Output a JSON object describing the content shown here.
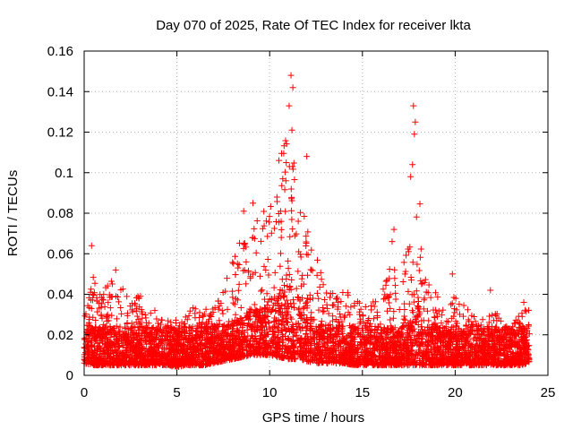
{
  "chart_data": {
    "type": "scatter",
    "title": "Day 070 of 2025, Rate Of TEC Index for receiver lkta",
    "xlabel": "GPS time / hours",
    "ylabel": "ROTI / TECUs",
    "xlim": [
      0,
      25
    ],
    "ylim": [
      0,
      0.16
    ],
    "x_ticks": [
      0,
      5,
      10,
      15,
      20,
      25
    ],
    "y_ticks": [
      0,
      0.02,
      0.04,
      0.06,
      0.08,
      0.1,
      0.12,
      0.14,
      0.16
    ],
    "x_tick_labels": [
      "0",
      "5",
      "10",
      "15",
      "20",
      "25"
    ],
    "y_tick_labels": [
      "0",
      "0.02",
      "0.04",
      "0.06",
      "0.08",
      "0.1",
      "0.12",
      "0.14",
      "0.16"
    ],
    "grid": true,
    "marker": "+",
    "color": "#ff0000",
    "series": [
      {
        "name": "ROTI",
        "envelope_hours": [
          0,
          0.5,
          1,
          1.5,
          2,
          2.5,
          3,
          3.5,
          4,
          4.5,
          5,
          5.5,
          6,
          6.5,
          7,
          7.5,
          8,
          8.5,
          9,
          9.5,
          10,
          10.5,
          11,
          11.5,
          12,
          12.5,
          13,
          13.5,
          14,
          14.5,
          15,
          15.5,
          16,
          16.5,
          17,
          17.5,
          18,
          18.5,
          19,
          19.5,
          20,
          20.5,
          21,
          21.5,
          22,
          22.5,
          23,
          23.5,
          24
        ],
        "envelope_min": [
          0.006,
          0.005,
          0.005,
          0.005,
          0.005,
          0.005,
          0.005,
          0.005,
          0.005,
          0.005,
          0.004,
          0.005,
          0.005,
          0.005,
          0.006,
          0.007,
          0.008,
          0.009,
          0.01,
          0.01,
          0.01,
          0.009,
          0.008,
          0.008,
          0.007,
          0.006,
          0.006,
          0.006,
          0.006,
          0.005,
          0.005,
          0.005,
          0.005,
          0.005,
          0.005,
          0.005,
          0.005,
          0.005,
          0.005,
          0.005,
          0.005,
          0.005,
          0.005,
          0.005,
          0.005,
          0.005,
          0.005,
          0.005,
          0.006
        ],
        "envelope_max": [
          0.03,
          0.05,
          0.04,
          0.051,
          0.045,
          0.035,
          0.04,
          0.033,
          0.032,
          0.03,
          0.028,
          0.03,
          0.035,
          0.032,
          0.038,
          0.045,
          0.058,
          0.068,
          0.075,
          0.078,
          0.09,
          0.1,
          0.135,
          0.1,
          0.08,
          0.065,
          0.045,
          0.04,
          0.045,
          0.04,
          0.035,
          0.036,
          0.04,
          0.055,
          0.05,
          0.065,
          0.1,
          0.05,
          0.04,
          0.032,
          0.04,
          0.035,
          0.03,
          0.028,
          0.033,
          0.028,
          0.025,
          0.03,
          0.035
        ],
        "peaks": [
          {
            "x": 11.15,
            "y": 0.148
          },
          {
            "x": 11.25,
            "y": 0.142
          },
          {
            "x": 11.05,
            "y": 0.133
          },
          {
            "x": 11.2,
            "y": 0.121
          },
          {
            "x": 12.0,
            "y": 0.108
          },
          {
            "x": 10.5,
            "y": 0.106
          },
          {
            "x": 17.75,
            "y": 0.133
          },
          {
            "x": 17.85,
            "y": 0.125
          },
          {
            "x": 17.8,
            "y": 0.119
          },
          {
            "x": 17.7,
            "y": 0.104
          },
          {
            "x": 17.6,
            "y": 0.098
          },
          {
            "x": 0.4,
            "y": 0.064
          },
          {
            "x": 9.1,
            "y": 0.085
          },
          {
            "x": 8.6,
            "y": 0.081
          },
          {
            "x": 16.7,
            "y": 0.072
          },
          {
            "x": 16.6,
            "y": 0.066
          },
          {
            "x": 19.85,
            "y": 0.05
          },
          {
            "x": 1.7,
            "y": 0.052
          },
          {
            "x": 23.7,
            "y": 0.036
          },
          {
            "x": 21.9,
            "y": 0.042
          }
        ]
      }
    ]
  }
}
